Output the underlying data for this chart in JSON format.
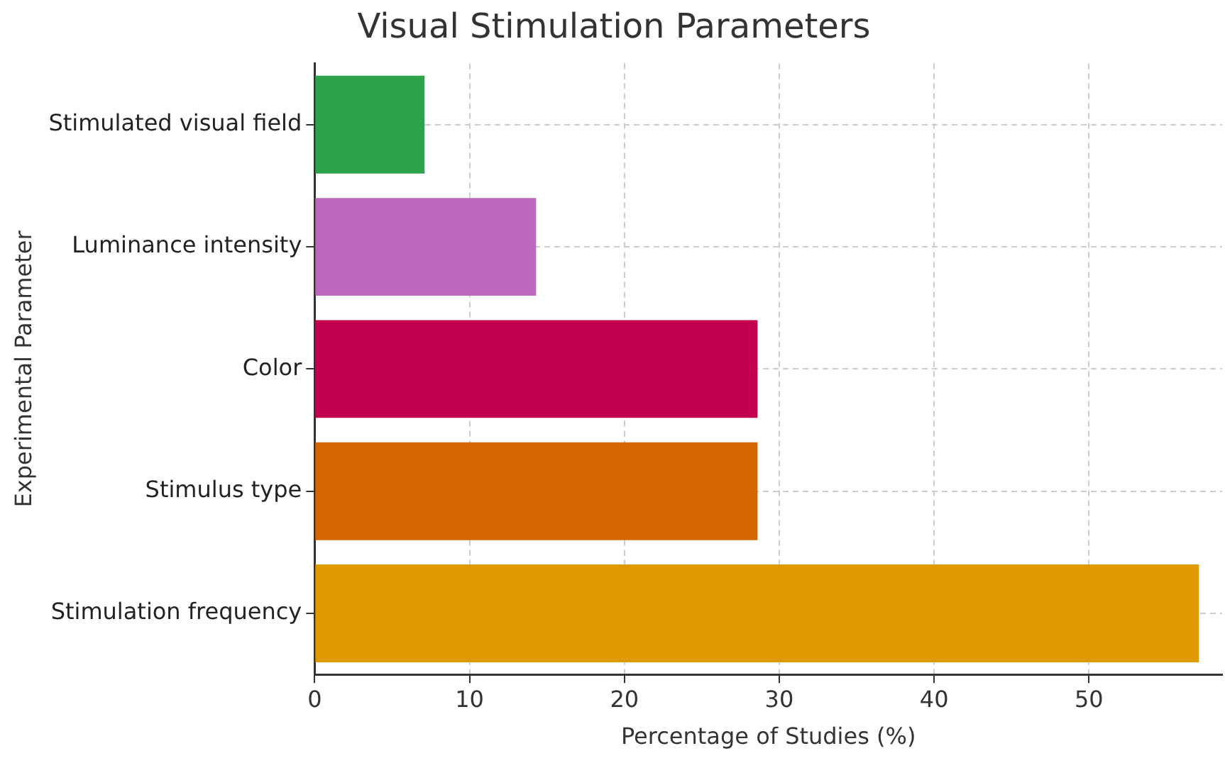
{
  "chart_data": {
    "type": "bar",
    "orientation": "horizontal",
    "title": "Visual Stimulation Parameters",
    "xlabel": "Percentage of Studies (%)",
    "ylabel": "Experimental Parameter",
    "categories": [
      "Stimulated visual field",
      "Luminance intensity",
      "Color",
      "Stimulus type",
      "Stimulation frequency"
    ],
    "values": [
      7.1,
      14.3,
      28.6,
      28.6,
      57.1
    ],
    "colors": [
      "#2ca34a",
      "#bc68bd",
      "#c2004e",
      "#d56500",
      "#e09a00"
    ],
    "xlim": [
      0,
      58.6
    ],
    "xticks": [
      0,
      10,
      20,
      30,
      40,
      50
    ],
    "grid": true,
    "legend": false
  }
}
